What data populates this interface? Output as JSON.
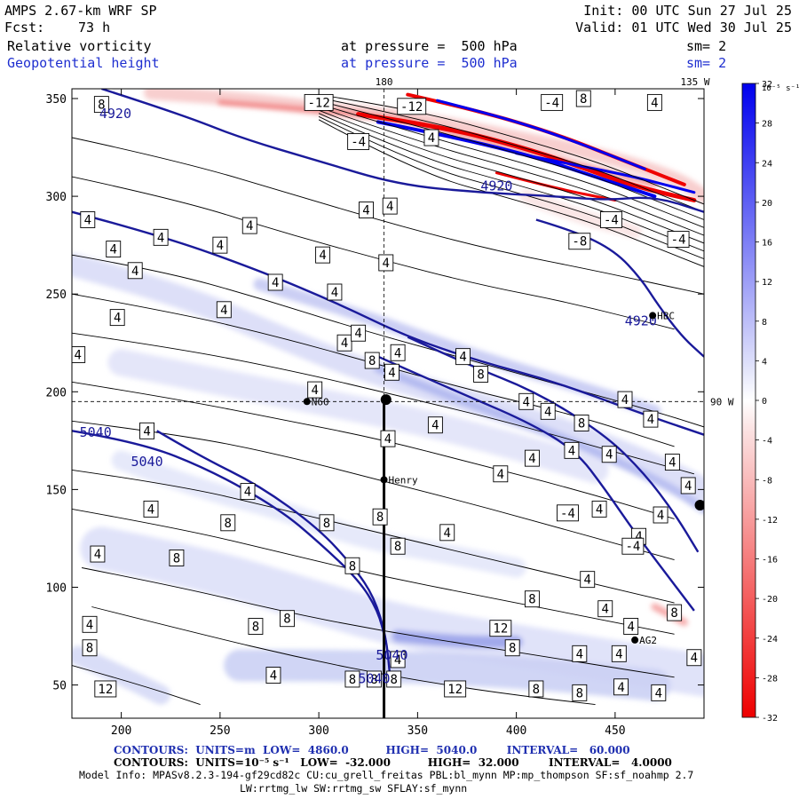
{
  "header": {
    "model": "AMPS 2.67-km WRF SP",
    "init": "Init: 00 UTC Sun 27 Jul 25",
    "fcst_label": "Fcst:",
    "fcst_value": "73 h",
    "valid": "Valid: 01 UTC Wed 30 Jul 25",
    "field1_name": "Relative vorticity",
    "field1_level": "at pressure =  500 hPa",
    "field1_sm": "sm= 2",
    "field2_name": "Geopotential height",
    "field2_level": "at pressure =  500 hPa",
    "field2_sm": "sm= 2"
  },
  "footer": {
    "line1": "CONTOURS:  UNITS=m  LOW=  4860.0          HIGH=  5040.0        INTERVAL=   60.000",
    "line2": "CONTOURS:  UNITS=10⁻⁵ s⁻¹   LOW=  -32.000          HIGH=  32.000        INTERVAL=   4.0000",
    "line3": "Model Info: MPASv8.2.3-194-gf29cd82c CU:cu_grell_freitas PBL:bl_mynn MP:mp_thompson SF:sf_noahmp 2.7",
    "line4": "LW:rrtmg_lw SW:rrtmg_sw SFLAY:sf_mynn"
  },
  "colors": {
    "height_contour": "#1a1a9a",
    "positive_max": "#0000ee",
    "negative_max": "#ee0000",
    "stations": "#000000"
  },
  "chart_data": {
    "type": "heatmap",
    "description_fields": [
      "Relative vorticity (shaded, thin contours)",
      "Geopotential height (thick blue contours)"
    ],
    "x_axis": {
      "ticks": [
        200,
        250,
        300,
        350,
        400,
        450
      ],
      "range": [
        175,
        495
      ]
    },
    "y_axis": {
      "ticks": [
        50,
        100,
        150,
        200,
        250,
        300,
        350
      ],
      "range": [
        33,
        355
      ]
    },
    "grid_annotations": {
      "top_lon_labels": [
        "180",
        "135 W"
      ],
      "right_lat_label": "90 W"
    },
    "colorbar": {
      "unit_label": "10⁻⁵ s⁻¹",
      "ticks": [
        32,
        28,
        24,
        20,
        16,
        12,
        8,
        4,
        0,
        -4,
        -8,
        -12,
        -16,
        -20,
        -24,
        -28,
        -32
      ],
      "min": -32,
      "max": 32,
      "interval": 4
    },
    "height_contours": {
      "units": "m",
      "low": 4860.0,
      "high": 5040.0,
      "interval": 60.0,
      "lines": [
        {
          "value": "4920",
          "pts": [
            [
              190,
              355
            ],
            [
              230,
              342
            ],
            [
              260,
              330
            ],
            [
              300,
              318
            ],
            [
              340,
              306
            ],
            [
              380,
              302
            ],
            [
              420,
              300
            ],
            [
              445,
              298
            ],
            [
              470,
              300
            ],
            [
              495,
              292
            ]
          ]
        },
        {
          "value": "4920",
          "pts": [
            [
              175,
              292
            ],
            [
              220,
              280
            ],
            [
              270,
              262
            ],
            [
              310,
              245
            ],
            [
              345,
              228
            ],
            [
              380,
              216
            ],
            [
              420,
              205
            ],
            [
              460,
              190
            ],
            [
              495,
              178
            ]
          ]
        },
        {
          "value": "4920",
          "pts": [
            [
              410,
              288
            ],
            [
              430,
              282
            ],
            [
              450,
              272
            ],
            [
              463,
              258
            ],
            [
              472,
              244
            ],
            [
              484,
              228
            ],
            [
              495,
              218
            ]
          ]
        },
        {
          "value": "5040",
          "pts": [
            [
              175,
              180
            ],
            [
              210,
              174
            ],
            [
              245,
              160
            ],
            [
              280,
              140
            ],
            [
              300,
              123
            ],
            [
              320,
              104
            ],
            [
              330,
              88
            ],
            [
              334,
              72
            ]
          ]
        },
        {
          "value": "5040",
          "pts": [
            [
              218,
              180
            ],
            [
              240,
              167
            ],
            [
              270,
              152
            ],
            [
              300,
              130
            ],
            [
              318,
              110
            ],
            [
              328,
              95
            ],
            [
              334,
              75
            ],
            [
              336,
              55
            ]
          ]
        },
        {
          "value": "5040",
          "pts": [
            [
              330,
              218
            ],
            [
              370,
              200
            ],
            [
              405,
              185
            ],
            [
              430,
              170
            ],
            [
              445,
              150
            ],
            [
              460,
              128
            ],
            [
              475,
              108
            ],
            [
              490,
              88
            ]
          ]
        },
        {
          "value": "5040",
          "pts": [
            [
              345,
              228
            ],
            [
              375,
              214
            ],
            [
              410,
              200
            ],
            [
              445,
              178
            ],
            [
              465,
              158
            ],
            [
              480,
              138
            ],
            [
              492,
              118
            ]
          ]
        }
      ],
      "labels": [
        {
          "text": "4920",
          "x": 197,
          "y": 340
        },
        {
          "text": "4920",
          "x": 390,
          "y": 303
        },
        {
          "text": "4920",
          "x": 463,
          "y": 234
        },
        {
          "text": "5040",
          "x": 187,
          "y": 177
        },
        {
          "text": "5040",
          "x": 213,
          "y": 162
        },
        {
          "text": "5040",
          "x": 337,
          "y": 63
        },
        {
          "text": "5040",
          "x": 328,
          "y": 51
        }
      ]
    },
    "vorticity_contours": {
      "units": "10⁻⁵ s⁻¹",
      "low": -32.0,
      "high": 32.0,
      "interval": 4.0,
      "labels": [
        {
          "text": "8",
          "x": 190,
          "y": 347
        },
        {
          "text": "-12",
          "x": 300,
          "y": 348
        },
        {
          "text": "-12",
          "x": 347,
          "y": 346
        },
        {
          "text": "-4",
          "x": 320,
          "y": 328
        },
        {
          "text": "4",
          "x": 357,
          "y": 330
        },
        {
          "text": "-4",
          "x": 418,
          "y": 348
        },
        {
          "text": "8",
          "x": 434,
          "y": 350
        },
        {
          "text": "4",
          "x": 470,
          "y": 348
        },
        {
          "text": "-4",
          "x": 448,
          "y": 288
        },
        {
          "text": "-8",
          "x": 432,
          "y": 277
        },
        {
          "text": "-4",
          "x": 482,
          "y": 278
        },
        {
          "text": "4",
          "x": 324,
          "y": 293
        },
        {
          "text": "4",
          "x": 336,
          "y": 295
        },
        {
          "text": "4",
          "x": 220,
          "y": 279
        },
        {
          "text": "4",
          "x": 183,
          "y": 288
        },
        {
          "text": "4",
          "x": 265,
          "y": 285
        },
        {
          "text": "4",
          "x": 196,
          "y": 273
        },
        {
          "text": "4",
          "x": 250,
          "y": 275
        },
        {
          "text": "4",
          "x": 207,
          "y": 262
        },
        {
          "text": "4",
          "x": 302,
          "y": 270
        },
        {
          "text": "4",
          "x": 334,
          "y": 266
        },
        {
          "text": "4",
          "x": 278,
          "y": 256
        },
        {
          "text": "4",
          "x": 308,
          "y": 251
        },
        {
          "text": "4",
          "x": 198,
          "y": 238
        },
        {
          "text": "4",
          "x": 252,
          "y": 242
        },
        {
          "text": "4",
          "x": 313,
          "y": 225
        },
        {
          "text": "4",
          "x": 178,
          "y": 219
        },
        {
          "text": "4",
          "x": 320,
          "y": 230
        },
        {
          "text": "8",
          "x": 327,
          "y": 216
        },
        {
          "text": "4",
          "x": 337,
          "y": 210
        },
        {
          "text": "4",
          "x": 340,
          "y": 220
        },
        {
          "text": "4",
          "x": 373,
          "y": 218
        },
        {
          "text": "8",
          "x": 382,
          "y": 209
        },
        {
          "text": "4",
          "x": 298,
          "y": 201
        },
        {
          "text": "4",
          "x": 405,
          "y": 195
        },
        {
          "text": "4",
          "x": 416,
          "y": 190
        },
        {
          "text": "4",
          "x": 455,
          "y": 196
        },
        {
          "text": "4",
          "x": 213,
          "y": 180
        },
        {
          "text": "4",
          "x": 335,
          "y": 176
        },
        {
          "text": "4",
          "x": 359,
          "y": 183
        },
        {
          "text": "4",
          "x": 408,
          "y": 166
        },
        {
          "text": "4",
          "x": 468,
          "y": 186
        },
        {
          "text": "8",
          "x": 433,
          "y": 184
        },
        {
          "text": "4",
          "x": 447,
          "y": 168
        },
        {
          "text": "4",
          "x": 428,
          "y": 170
        },
        {
          "text": "4",
          "x": 479,
          "y": 164
        },
        {
          "text": "4",
          "x": 392,
          "y": 158
        },
        {
          "text": "4",
          "x": 264,
          "y": 149
        },
        {
          "text": "4",
          "x": 215,
          "y": 140
        },
        {
          "text": "8",
          "x": 254,
          "y": 133
        },
        {
          "text": "8",
          "x": 304,
          "y": 133
        },
        {
          "text": "8",
          "x": 331,
          "y": 136
        },
        {
          "text": "4",
          "x": 442,
          "y": 140
        },
        {
          "text": "-4",
          "x": 426,
          "y": 138
        },
        {
          "text": "4",
          "x": 473,
          "y": 137
        },
        {
          "text": "4",
          "x": 487,
          "y": 152
        },
        {
          "text": "4",
          "x": 188,
          "y": 117
        },
        {
          "text": "8",
          "x": 228,
          "y": 115
        },
        {
          "text": "4",
          "x": 365,
          "y": 128
        },
        {
          "text": "8",
          "x": 340,
          "y": 121
        },
        {
          "text": "4",
          "x": 462,
          "y": 126
        },
        {
          "text": "-4",
          "x": 459,
          "y": 121
        },
        {
          "text": "8",
          "x": 317,
          "y": 111
        },
        {
          "text": "4",
          "x": 436,
          "y": 104
        },
        {
          "text": "8",
          "x": 408,
          "y": 94
        },
        {
          "text": "4",
          "x": 445,
          "y": 89
        },
        {
          "text": "4",
          "x": 458,
          "y": 80
        },
        {
          "text": "8",
          "x": 480,
          "y": 87
        },
        {
          "text": "4",
          "x": 184,
          "y": 81
        },
        {
          "text": "8",
          "x": 284,
          "y": 84
        },
        {
          "text": "8",
          "x": 268,
          "y": 80
        },
        {
          "text": "12",
          "x": 392,
          "y": 79
        },
        {
          "text": "8",
          "x": 398,
          "y": 69
        },
        {
          "text": "4",
          "x": 432,
          "y": 66
        },
        {
          "text": "4",
          "x": 452,
          "y": 66
        },
        {
          "text": "4",
          "x": 490,
          "y": 64
        },
        {
          "text": "8",
          "x": 184,
          "y": 69
        },
        {
          "text": "4",
          "x": 340,
          "y": 63
        },
        {
          "text": "4",
          "x": 277,
          "y": 55
        },
        {
          "text": "8",
          "x": 338,
          "y": 53
        },
        {
          "text": "8",
          "x": 317,
          "y": 53
        },
        {
          "text": "8",
          "x": 328,
          "y": 53
        },
        {
          "text": "12",
          "x": 192,
          "y": 48
        },
        {
          "text": "12",
          "x": 369,
          "y": 48
        },
        {
          "text": "8",
          "x": 410,
          "y": 48
        },
        {
          "text": "8",
          "x": 432,
          "y": 46
        },
        {
          "text": "4",
          "x": 453,
          "y": 49
        },
        {
          "text": "4",
          "x": 472,
          "y": 46
        }
      ]
    },
    "stations": [
      {
        "name": "N60",
        "x": 294,
        "y": 195,
        "label_dx": 4
      },
      {
        "name": "Henry",
        "x": 333,
        "y": 155,
        "label_dx": 4
      },
      {
        "name": "HBC",
        "x": 469,
        "y": 239,
        "label_dx": 4
      },
      {
        "name": "AG2",
        "x": 460,
        "y": 73,
        "label_dx": 4
      },
      {
        "name": "",
        "x": 334,
        "y": 196,
        "label_dx": 0
      },
      {
        "name": "",
        "x": 493,
        "y": 142,
        "label_dx": 0
      }
    ],
    "track": {
      "pts": [
        [
          333,
          197
        ],
        [
          333,
          33
        ]
      ]
    },
    "reference_lines": {
      "lon180_x": 333,
      "lat90w_y": 195
    }
  }
}
